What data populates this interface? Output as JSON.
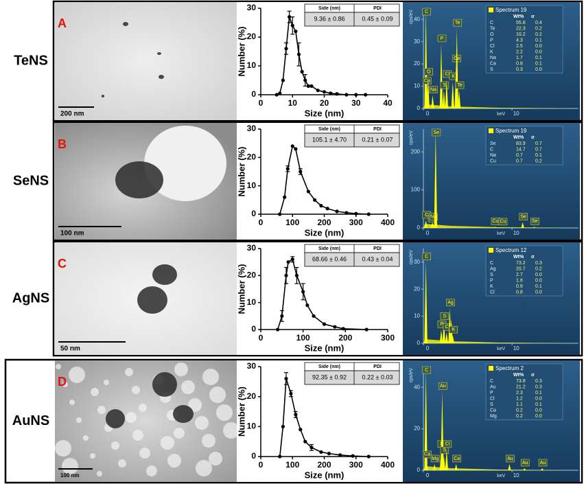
{
  "panels": [
    {
      "name": "TeNS",
      "letter": "A",
      "scale_bar": "200 nm",
      "size_table": {
        "headers": [
          "Side (nm)",
          "PDI"
        ],
        "values": [
          "9.36 ± 0.86",
          "0.45 ± 0.09"
        ]
      }
    },
    {
      "name": "SeNS",
      "letter": "B",
      "scale_bar": "100 nm",
      "size_table": {
        "headers": [
          "Side (nm)",
          "PDI"
        ],
        "values": [
          "105.1 ± 4.70",
          "0.21 ± 0.07"
        ]
      }
    },
    {
      "name": "AgNS",
      "letter": "C",
      "scale_bar": "50 nm",
      "size_table": {
        "headers": [
          "Side (nm)",
          "PDI"
        ],
        "values": [
          "68.66 ± 0.46",
          "0.43 ± 0.04"
        ]
      }
    },
    {
      "name": "AuNS",
      "letter": "D",
      "scale_bar": "100 nm",
      "size_table": {
        "headers": [
          "Side (nm)",
          "PDI"
        ],
        "values": [
          "92.35 ± 0.92",
          "0.22 ± 0.03"
        ]
      }
    }
  ],
  "chart_data": [
    {
      "type": "line",
      "xlabel": "Size (nm)",
      "ylabel": "Number (%)",
      "color": "#000000",
      "x": [
        5,
        6,
        7,
        8,
        9,
        10,
        11,
        12,
        13,
        14,
        15,
        16,
        18,
        20,
        22,
        24,
        27,
        30,
        33
      ],
      "values": [
        0,
        0.5,
        5,
        16,
        27,
        24,
        22,
        14,
        8,
        5,
        3,
        3,
        1.5,
        1,
        0.5,
        0.3,
        0,
        0,
        0
      ],
      "errors": [
        null,
        null,
        null,
        2,
        2,
        3,
        null,
        4,
        null,
        2,
        null,
        null,
        null,
        null,
        null,
        null,
        null,
        null,
        null
      ],
      "xlim": [
        0,
        40
      ],
      "ylim": [
        0,
        30
      ],
      "xticks": [
        0,
        10,
        20,
        30,
        40
      ],
      "yticks": [
        0,
        10,
        20,
        30
      ]
    },
    {
      "type": "line",
      "xlabel": "Size (nm)",
      "ylabel": "Number (%)",
      "color": "#000000",
      "x": [
        60,
        75,
        85,
        100,
        110,
        125,
        150,
        170,
        190,
        210,
        240,
        270,
        300,
        340
      ],
      "values": [
        0,
        6,
        16,
        24,
        23,
        15,
        8,
        5,
        3,
        2,
        1,
        0.5,
        0.2,
        0
      ],
      "errors": [
        null,
        null,
        1,
        null,
        null,
        1,
        null,
        null,
        null,
        null,
        null,
        null,
        null,
        null
      ],
      "xlim": [
        0,
        400
      ],
      "ylim": [
        0,
        30
      ],
      "xticks": [
        0,
        100,
        200,
        300,
        400
      ],
      "yticks": [
        0,
        10,
        20,
        30
      ]
    },
    {
      "type": "line",
      "xlabel": "Size (nm)",
      "ylabel": "Number (%)",
      "color": "#000000",
      "x": [
        40,
        50,
        60,
        65,
        75,
        85,
        100,
        110,
        125,
        150,
        175,
        195,
        250
      ],
      "values": [
        0,
        5,
        20,
        25,
        26,
        20,
        14,
        9,
        5,
        2,
        1,
        0.3,
        0
      ],
      "errors": [
        null,
        2,
        3,
        null,
        1,
        3,
        3,
        null,
        null,
        null,
        null,
        null,
        null
      ],
      "xlim": [
        0,
        300
      ],
      "ylim": [
        0,
        30
      ],
      "xticks": [
        0,
        100,
        200,
        300
      ],
      "yticks": [
        0,
        10,
        20,
        30
      ]
    },
    {
      "type": "line",
      "xlabel": "Size (nm)",
      "ylabel": "Number (%)",
      "color": "#000000",
      "x": [
        60,
        70,
        80,
        95,
        110,
        125,
        140,
        160,
        190,
        215,
        250,
        290,
        340
      ],
      "values": [
        0,
        10,
        26,
        21,
        14,
        9,
        5,
        3,
        1.5,
        1,
        0.5,
        0.2,
        0
      ],
      "errors": [
        null,
        null,
        2,
        1,
        1,
        null,
        null,
        1,
        null,
        null,
        null,
        null,
        null
      ],
      "xlim": [
        0,
        400
      ],
      "ylim": [
        0,
        30
      ],
      "xticks": [
        0,
        100,
        200,
        300,
        400
      ],
      "yticks": [
        0,
        10,
        20,
        30
      ]
    },
    {
      "type": "spectrum",
      "title": "Spectrum 19",
      "xlabel": "keV",
      "ylabel": "cps/eV",
      "color": "#ffff00",
      "x": [
        0.28,
        0.34,
        0.52,
        1.04,
        2.01,
        2.31,
        2.62,
        3.31,
        3.69,
        3.77,
        4.03
      ],
      "values": [
        44,
        10,
        14,
        6,
        29,
        8,
        13,
        12,
        20,
        36,
        8
      ],
      "peak_labels": [
        "C",
        "Ca",
        "O",
        "Na",
        "P",
        "S",
        "Cl",
        "K",
        "Ca",
        "Te",
        "Te"
      ],
      "xlim": [
        0,
        17.5
      ],
      "ylim": [
        0,
        45
      ],
      "xticks": [
        0,
        10
      ],
      "yticks": [
        0,
        10,
        20,
        30,
        40
      ],
      "table": {
        "headers": [
          "Wt%",
          "σ"
        ],
        "rows": [
          [
            "C",
            "55.8",
            "0.4"
          ],
          [
            "Te",
            "22.3",
            "0.2"
          ],
          [
            "O",
            "10.2",
            "0.2"
          ],
          [
            "P",
            "4.3",
            "0.1"
          ],
          [
            "Cl",
            "2.5",
            "0.0"
          ],
          [
            "K",
            "2.2",
            "0.0"
          ],
          [
            "Na",
            "1.7",
            "0.1"
          ],
          [
            "Ca",
            "0.8",
            "0.1"
          ],
          [
            "S",
            "0.3",
            "0.0"
          ]
        ]
      }
    },
    {
      "type": "spectrum",
      "title": "Spectrum 19",
      "xlabel": "keV",
      "ylabel": "cps/eV",
      "color": "#ffff00",
      "x": [
        0.28,
        0.93,
        1.04,
        1.38,
        8.05,
        8.9,
        11.2,
        12.5
      ],
      "values": [
        20,
        10,
        15,
        255,
        3,
        2,
        15,
        3
      ],
      "peak_labels": [
        "C",
        "Cu",
        "Na",
        "Se",
        "Cu",
        "Cu",
        "Se",
        "Se"
      ],
      "xlim": [
        0,
        17.5
      ],
      "ylim": [
        0,
        260
      ],
      "xticks": [
        0,
        10
      ],
      "yticks": [
        0,
        100,
        200
      ],
      "table": {
        "headers": [
          "Wt%",
          "σ"
        ],
        "rows": [
          [
            "Se",
            "83.9",
            "0.7"
          ],
          [
            "C",
            "14.7",
            "0.7"
          ],
          [
            "Na",
            "0.7",
            "0.1"
          ],
          [
            "Cu",
            "0.7",
            "0.2"
          ]
        ]
      }
    },
    {
      "type": "spectrum",
      "title": "Spectrum 12",
      "xlabel": "keV",
      "ylabel": "cps/eV",
      "color": "#ffff00",
      "x": [
        0.28,
        2.01,
        2.31,
        2.62,
        2.98,
        3.15,
        3.31
      ],
      "values": [
        30,
        5,
        8,
        4,
        13,
        9,
        3
      ],
      "peak_labels": [
        "C",
        "P",
        "S",
        "Cl",
        "Ag",
        null,
        "K"
      ],
      "xlim": [
        0,
        17.5
      ],
      "ylim": [
        0,
        35
      ],
      "xticks": [
        0,
        10
      ],
      "yticks": [
        0,
        10,
        20,
        30
      ],
      "table": {
        "headers": [
          "Wt%",
          "σ"
        ],
        "rows": [
          [
            "C",
            "73.2",
            "0.3"
          ],
          [
            "Ag",
            "20.7",
            "0.2"
          ],
          [
            "S",
            "2.7",
            "0.0"
          ],
          [
            "P",
            "1.6",
            "0.0"
          ],
          [
            "K",
            "0.9",
            "0.1"
          ],
          [
            "Cl",
            "0.8",
            "0.0"
          ]
        ]
      }
    },
    {
      "type": "spectrum",
      "title": "Spectrum 2",
      "xlabel": "keV",
      "ylabel": "cps/eV",
      "color": "#ffff00",
      "x": [
        0.28,
        0.34,
        1.25,
        2.01,
        2.12,
        2.31,
        2.62,
        3.69,
        9.71,
        11.4,
        13.4
      ],
      "values": [
        48,
        5,
        3,
        10,
        38,
        7,
        10,
        3,
        3,
        1,
        1
      ],
      "peak_labels": [
        "C",
        "Ca",
        "Mg",
        "P",
        "Au",
        "S",
        "Cl",
        "Ca",
        "Au",
        "Au",
        "Au"
      ],
      "xlim": [
        0,
        17.5
      ],
      "ylim": [
        0,
        50
      ],
      "xticks": [
        0,
        10
      ],
      "yticks": [
        0,
        20,
        40
      ],
      "table": {
        "headers": [
          "Wt%",
          "σ"
        ],
        "rows": [
          [
            "C",
            "73.8",
            "0.3"
          ],
          [
            "Au",
            "21.2",
            "0.3"
          ],
          [
            "P",
            "2.3",
            "0.1"
          ],
          [
            "Cl",
            "1.2",
            "0.0"
          ],
          [
            "S",
            "1.1",
            "0.1"
          ],
          [
            "Ca",
            "0.2",
            "0.0"
          ],
          [
            "Mg",
            "0.2",
            "0.0"
          ]
        ]
      }
    }
  ]
}
